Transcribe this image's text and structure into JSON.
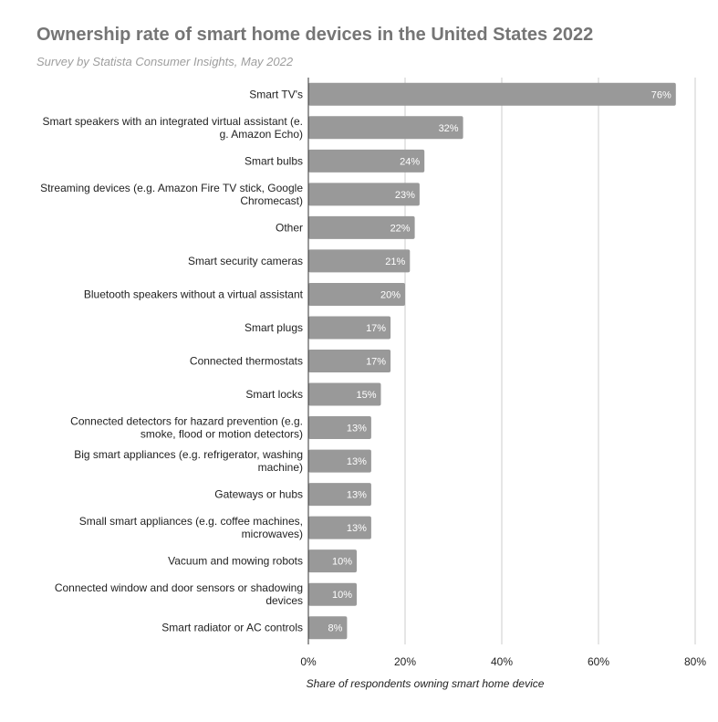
{
  "chart_data": {
    "type": "bar",
    "orientation": "horizontal",
    "title": "Ownership rate of smart home devices in the United States 2022",
    "subtitle": "Survey by Statista Consumer Insights, May 2022",
    "xlabel": "Share of respondents owning smart home device",
    "ylabel": "",
    "xlim": [
      0,
      80
    ],
    "xticks": [
      "0%",
      "20%",
      "40%",
      "60%",
      "80%"
    ],
    "grid": true,
    "bar_color": "#999999",
    "categories": [
      [
        "Smart TV's"
      ],
      [
        "Smart speakers with an integrated virtual assistant (e.",
        "g. Amazon Echo)"
      ],
      [
        "Smart bulbs"
      ],
      [
        "Streaming devices (e.g. Amazon Fire TV stick, Google",
        "Chromecast)"
      ],
      [
        "Other"
      ],
      [
        "Smart security cameras"
      ],
      [
        "Bluetooth speakers without a virtual assistant"
      ],
      [
        "Smart plugs"
      ],
      [
        "Connected thermostats"
      ],
      [
        "Smart locks"
      ],
      [
        "Connected detectors for hazard prevention (e.g.",
        "smoke, flood or motion detectors)"
      ],
      [
        "Big smart appliances (e.g. refrigerator, washing",
        "machine)"
      ],
      [
        "Gateways or hubs"
      ],
      [
        "Small smart appliances (e.g. coffee machines,",
        "microwaves)"
      ],
      [
        "Vacuum and mowing robots"
      ],
      [
        "Connected window and door sensors or shadowing",
        "devices"
      ],
      [
        "Smart radiator or AC controls"
      ]
    ],
    "values": [
      76,
      32,
      24,
      23,
      22,
      21,
      20,
      17,
      17,
      15,
      13,
      13,
      13,
      13,
      10,
      10,
      8
    ],
    "data_labels": [
      "76%",
      "32%",
      "24%",
      "23%",
      "22%",
      "21%",
      "20%",
      "17%",
      "17%",
      "15%",
      "13%",
      "13%",
      "13%",
      "13%",
      "10%",
      "10%",
      "8%"
    ]
  }
}
